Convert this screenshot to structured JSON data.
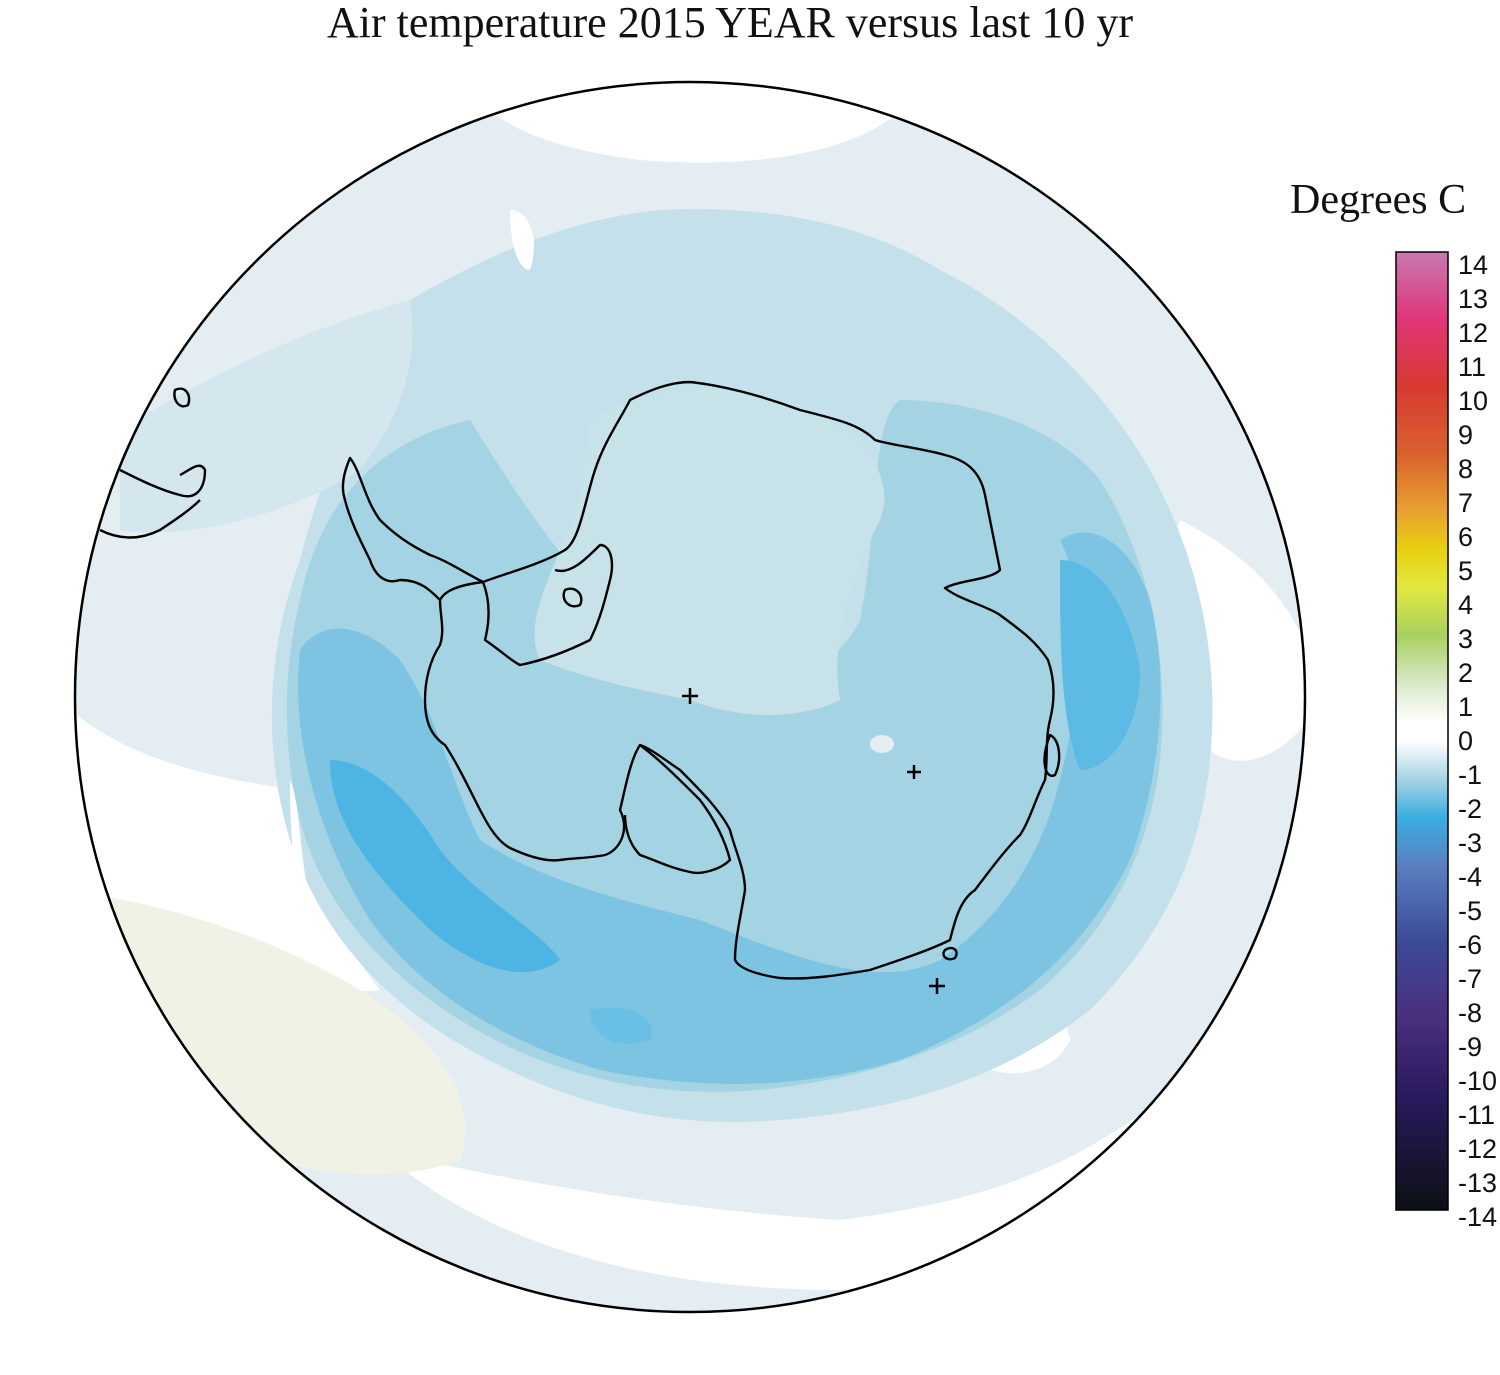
{
  "title": "Air temperature 2015 YEAR versus last 10 yr",
  "legend": {
    "title": "Degrees C",
    "ticks": [
      "14",
      "13",
      "12",
      "11",
      "10",
      "9",
      "8",
      "7",
      "6",
      "5",
      "4",
      "3",
      "2",
      "1",
      "0",
      "-1",
      "-2",
      "-3",
      "-4",
      "-5",
      "-6",
      "-7",
      "-8",
      "-9",
      "-10",
      "-11",
      "-12",
      "-13",
      "-14"
    ],
    "range": [
      -14,
      14
    ],
    "colors": {
      "14": "#c86aa8",
      "12": "#e0357a",
      "10": "#d83a30",
      "8": "#d96a30",
      "6": "#e8a830",
      "5": "#e8d020",
      "4": "#e0e040",
      "3": "#b8d860",
      "1": "#b8d8a8",
      "0": "#ffffff",
      "-1": "#a8d4e4",
      "-2": "#3aaee0",
      "-4": "#6070b0",
      "-7": "#3a3a8a",
      "-9": "#4a2a7a",
      "-11": "#2a1a5a",
      "-14": "#101418"
    }
  },
  "map": {
    "projection": "south-polar-stereographic",
    "markers": [
      "pole-marker",
      "station-marker",
      "station-marker"
    ]
  }
}
